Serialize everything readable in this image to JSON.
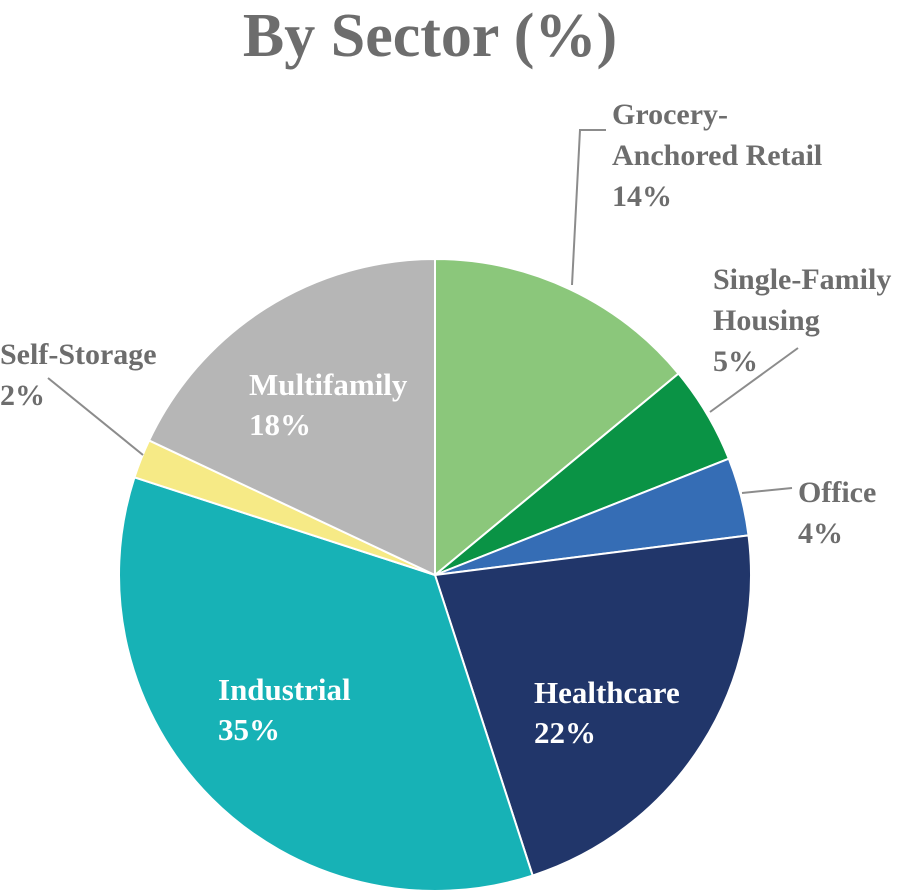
{
  "chart_data": {
    "type": "pie",
    "title": "By Sector (%)",
    "slices": [
      {
        "label": "Grocery-Anchored Retail",
        "label_lines": [
          "Grocery-",
          "Anchored Retail"
        ],
        "value": 14,
        "value_text": "14%",
        "color": "#8bc77b",
        "label_placement": "outside"
      },
      {
        "label": "Single-Family Housing",
        "label_lines": [
          "Single-Family",
          "Housing"
        ],
        "value": 5,
        "value_text": "5%",
        "color": "#0a9345",
        "label_placement": "outside"
      },
      {
        "label": "Office",
        "label_lines": [
          "Office"
        ],
        "value": 4,
        "value_text": "4%",
        "color": "#356db5",
        "label_placement": "outside"
      },
      {
        "label": "Healthcare",
        "label_lines": [
          "Healthcare"
        ],
        "value": 22,
        "value_text": "22%",
        "color": "#21366a",
        "label_placement": "inside"
      },
      {
        "label": "Industrial",
        "label_lines": [
          "Industrial"
        ],
        "value": 35,
        "value_text": "35%",
        "color": "#17b2b6",
        "label_placement": "inside"
      },
      {
        "label": "Self-Storage",
        "label_lines": [
          "Self-Storage"
        ],
        "value": 2,
        "value_text": "2%",
        "color": "#f6ea86",
        "label_placement": "outside"
      },
      {
        "label": "Multifamily",
        "label_lines": [
          "Multifamily"
        ],
        "value": 18,
        "value_text": "18%",
        "color": "#b6b6b6",
        "label_placement": "inside"
      }
    ],
    "colors": {
      "title_text": "#6d6d6d",
      "outside_label_text": "#6d6d6d",
      "inside_label_text": "#ffffff",
      "leader_line": "#8c8c8c"
    }
  }
}
